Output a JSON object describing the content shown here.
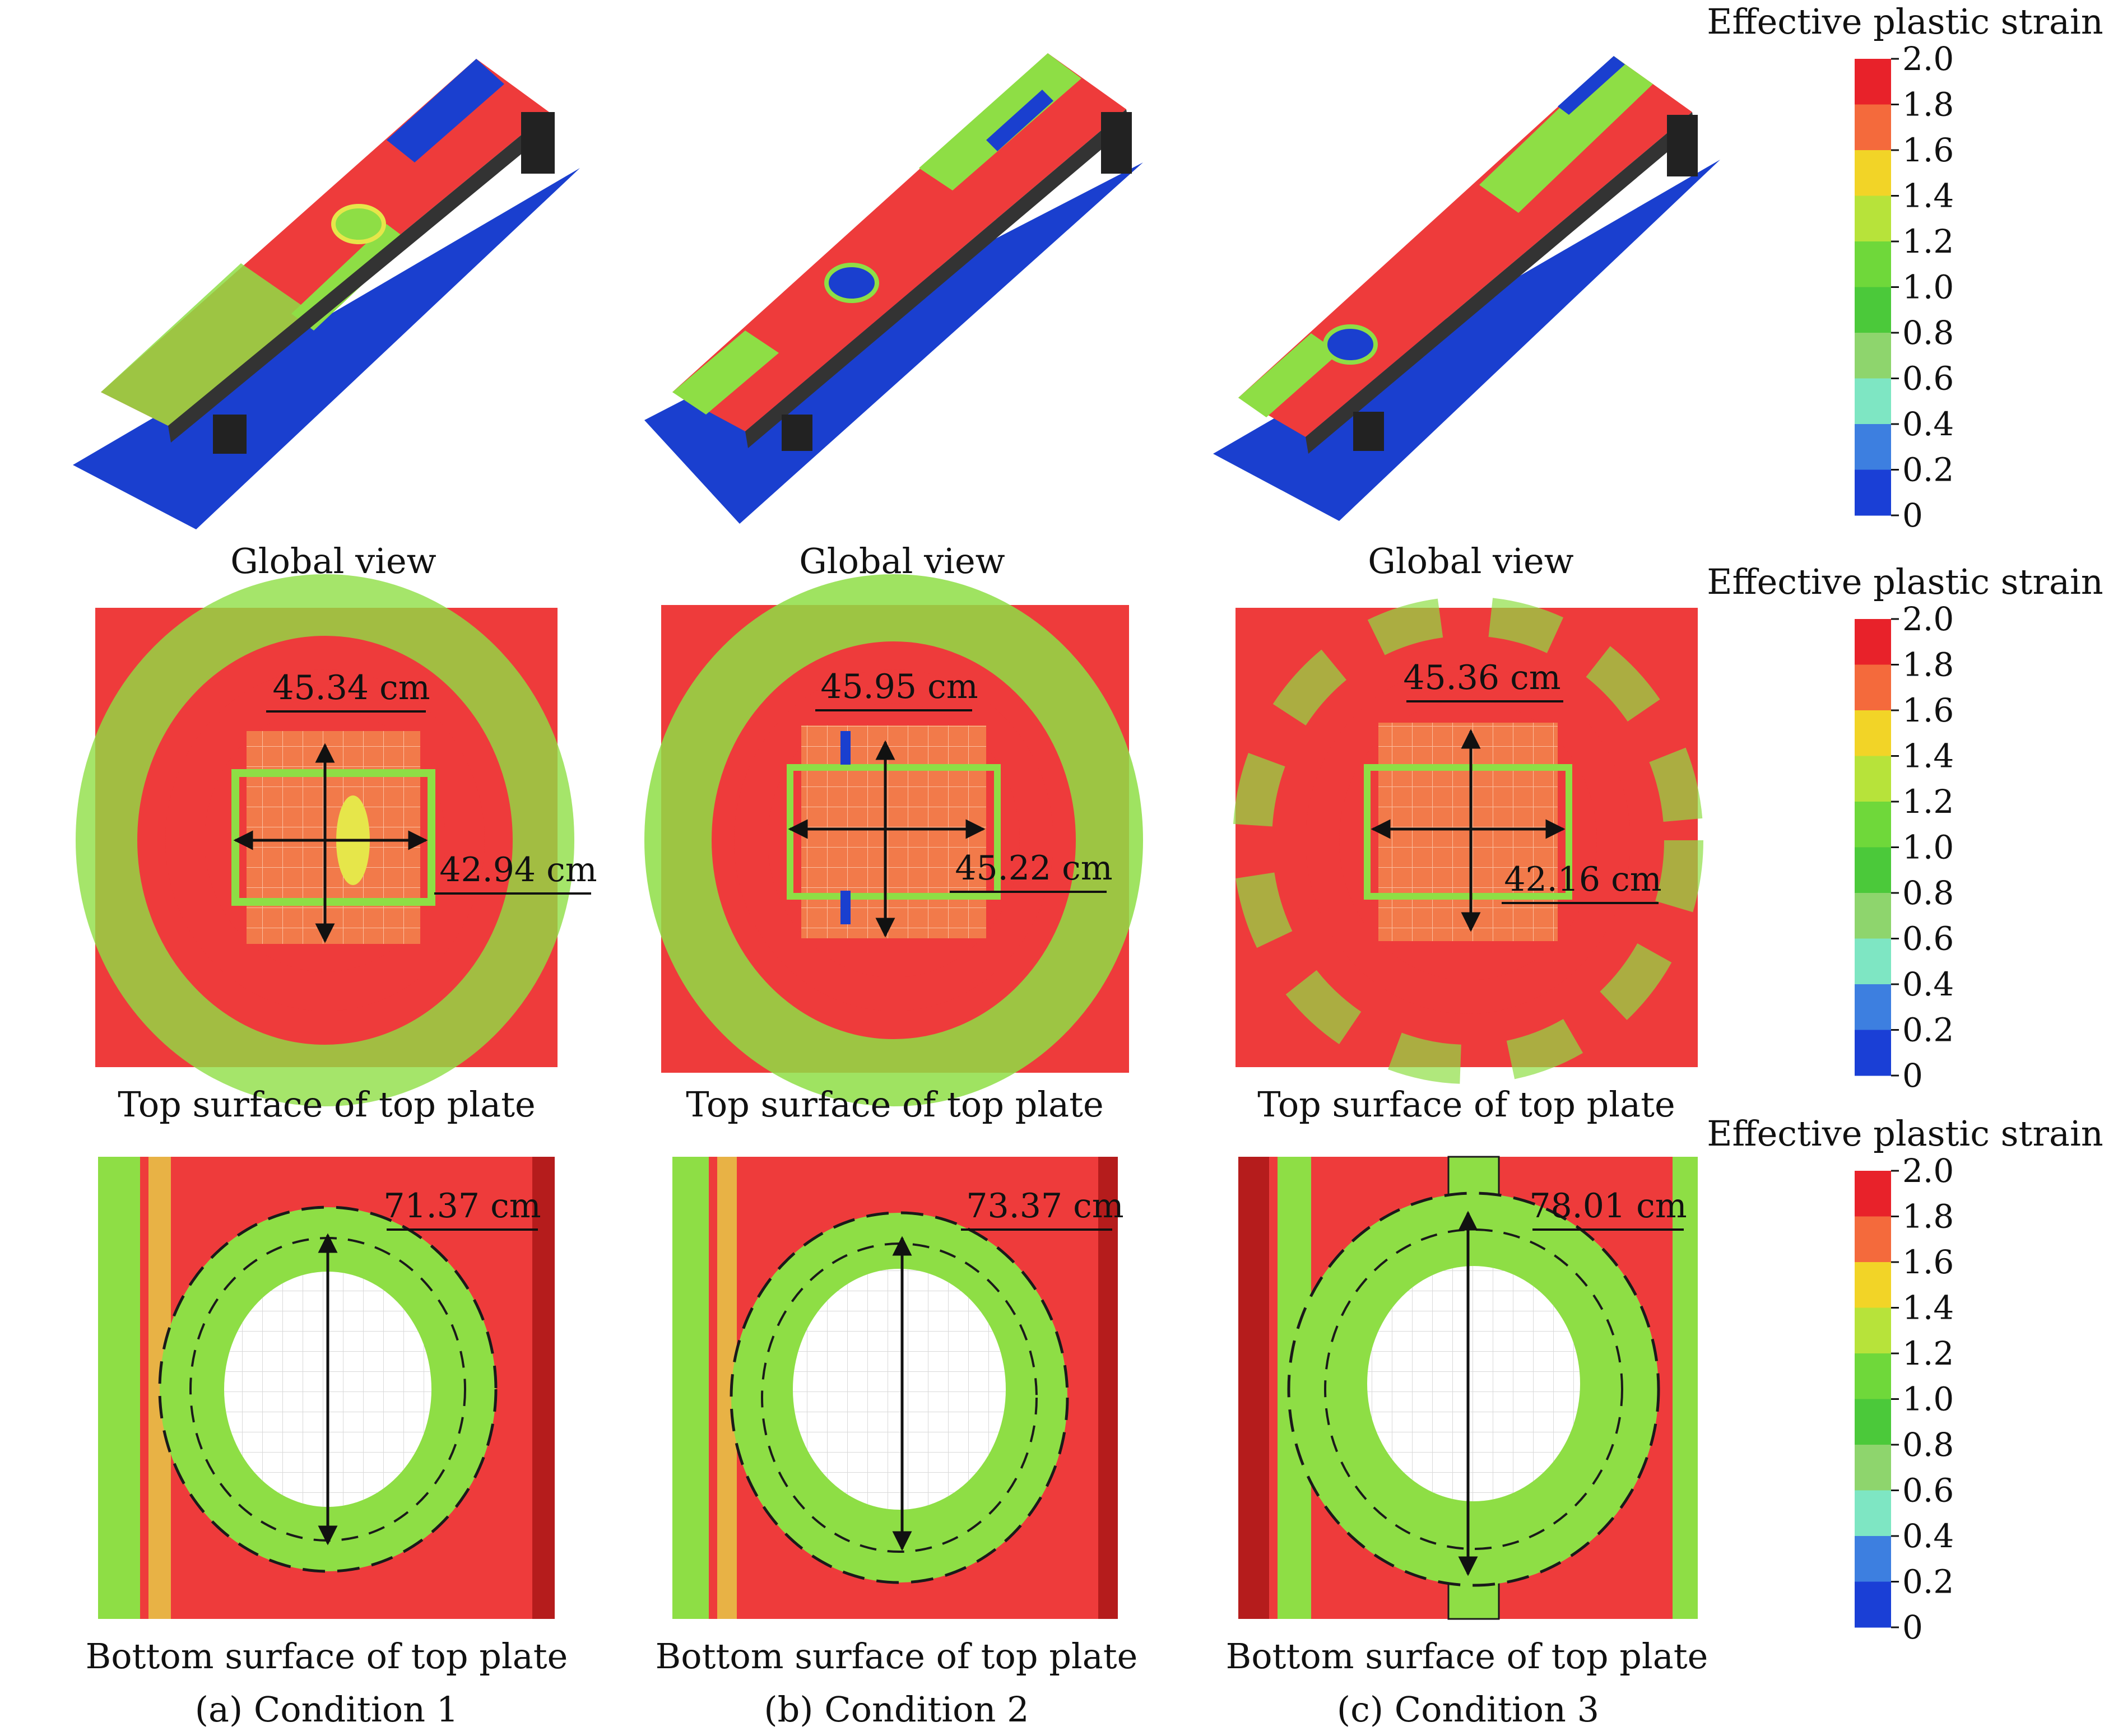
{
  "figure": {
    "columns": [
      {
        "id": "a",
        "caption": "(a) Condition 1",
        "global_label": "Global view",
        "top_label": "Top surface of top plate",
        "bottom_label": "Bottom surface of top plate",
        "top_width": "42.94 cm",
        "top_height": "45.34 cm",
        "bottom_diameter": "71.37 cm"
      },
      {
        "id": "b",
        "caption": "(b) Condition 2",
        "global_label": "Global view",
        "top_label": "Top surface of top plate",
        "bottom_label": "Bottom surface of top plate",
        "top_width": "45.22 cm",
        "top_height": "45.95 cm",
        "bottom_diameter": "73.37 cm"
      },
      {
        "id": "c",
        "caption": "(c) Condition 3",
        "global_label": "Global view",
        "top_label": "Top surface of top plate",
        "bottom_label": "Bottom surface of top plate",
        "top_width": "42.16 cm",
        "top_height": "45.36 cm",
        "bottom_diameter": "78.01 cm"
      }
    ],
    "colorbar": {
      "title": "Effective plastic strain",
      "ticks": [
        "2.0",
        "1.8",
        "1.6",
        "1.4",
        "1.2",
        "1.0",
        "0.8",
        "0.6",
        "0.4",
        "0.2",
        "0"
      ],
      "colors": [
        "#e8222a",
        "#f46a3c",
        "#f2d427",
        "#b7e33a",
        "#6fd83a",
        "#4bc93a",
        "#8ed56d",
        "#7ee6c3",
        "#3d7fe0",
        "#1a3fd6"
      ]
    },
    "palette": {
      "red": "#ee3b3b",
      "green": "#8ede45",
      "yellow": "#e6e64a",
      "blue": "#1a3fcf",
      "white": "#ffffff",
      "dark": "#1a1a1a"
    }
  }
}
